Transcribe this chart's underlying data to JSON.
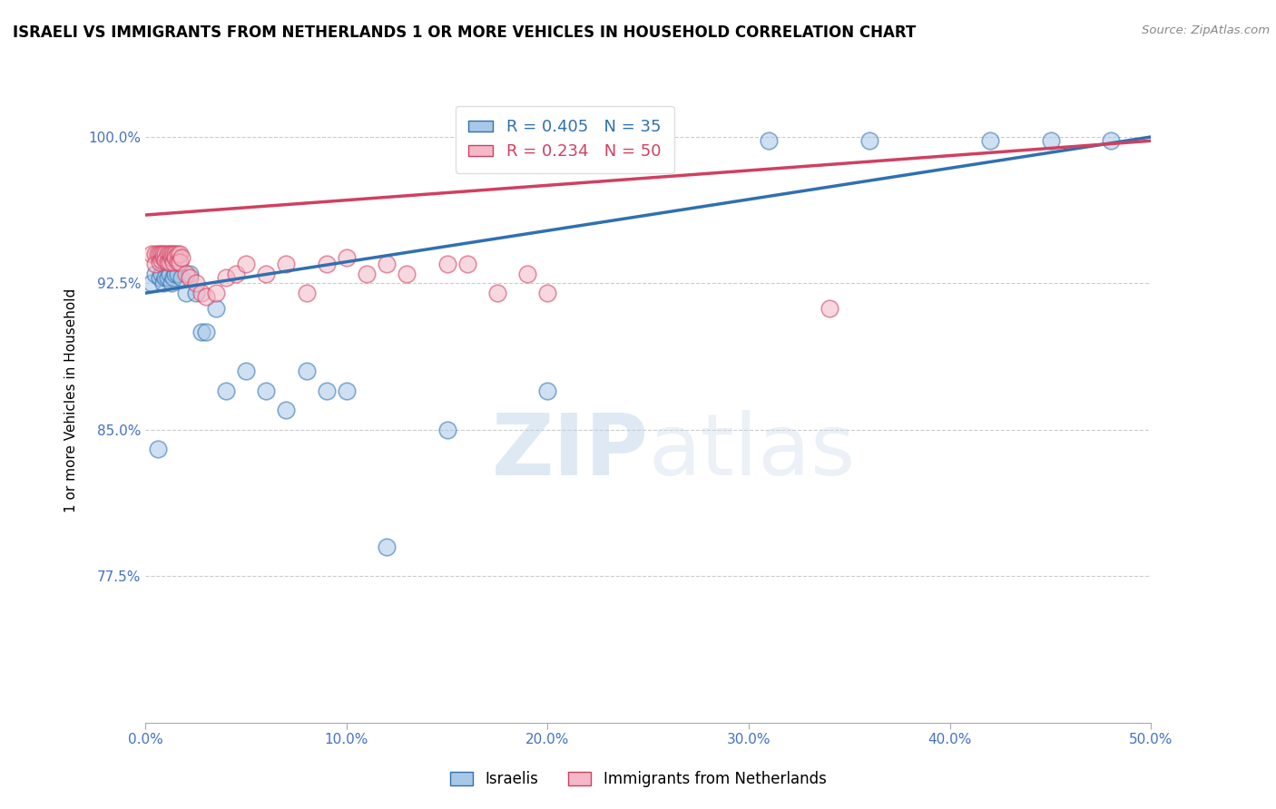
{
  "title": "ISRAELI VS IMMIGRANTS FROM NETHERLANDS 1 OR MORE VEHICLES IN HOUSEHOLD CORRELATION CHART",
  "source": "Source: ZipAtlas.com",
  "ylabel": "1 or more Vehicles in Household",
  "xlabel": "",
  "xlim": [
    0.0,
    0.5
  ],
  "ylim": [
    0.7,
    1.03
  ],
  "yticks": [
    0.775,
    0.85,
    0.925,
    1.0
  ],
  "ytick_labels": [
    "77.5%",
    "85.0%",
    "92.5%",
    "100.0%"
  ],
  "xticks": [
    0.0,
    0.1,
    0.2,
    0.3,
    0.4,
    0.5
  ],
  "xtick_labels": [
    "0.0%",
    "10.0%",
    "20.0%",
    "30.0%",
    "40.0%",
    "50.0%"
  ],
  "blue_color": "#a8c8e8",
  "pink_color": "#f4b8c8",
  "blue_line_color": "#3070b0",
  "pink_line_color": "#d04060",
  "blue_R": 0.405,
  "blue_N": 35,
  "pink_R": 0.234,
  "pink_N": 50,
  "legend_label_blue": "Israelis",
  "legend_label_pink": "Immigrants from Netherlands",
  "watermark_part1": "ZIP",
  "watermark_part2": "atlas",
  "title_fontsize": 12,
  "axis_label_color": "#4472c4",
  "grid_color": "#cccccc",
  "israelis_x": [
    0.003,
    0.005,
    0.006,
    0.007,
    0.008,
    0.009,
    0.01,
    0.011,
    0.012,
    0.013,
    0.014,
    0.015,
    0.016,
    0.018,
    0.02,
    0.022,
    0.025,
    0.028,
    0.03,
    0.035,
    0.04,
    0.05,
    0.06,
    0.07,
    0.08,
    0.09,
    0.1,
    0.12,
    0.15,
    0.2,
    0.31,
    0.36,
    0.42,
    0.45,
    0.48
  ],
  "israelis_y": [
    0.925,
    0.93,
    0.84,
    0.928,
    0.93,
    0.925,
    0.928,
    0.928,
    0.93,
    0.925,
    0.928,
    0.93,
    0.93,
    0.928,
    0.92,
    0.93,
    0.92,
    0.9,
    0.9,
    0.912,
    0.87,
    0.88,
    0.87,
    0.86,
    0.88,
    0.87,
    0.87,
    0.79,
    0.85,
    0.87,
    0.998,
    0.998,
    0.998,
    0.998,
    0.998
  ],
  "netherlands_x": [
    0.003,
    0.005,
    0.005,
    0.006,
    0.007,
    0.007,
    0.008,
    0.008,
    0.009,
    0.009,
    0.01,
    0.01,
    0.011,
    0.011,
    0.012,
    0.012,
    0.013,
    0.013,
    0.014,
    0.014,
    0.015,
    0.015,
    0.016,
    0.016,
    0.017,
    0.017,
    0.018,
    0.02,
    0.022,
    0.025,
    0.028,
    0.03,
    0.035,
    0.04,
    0.045,
    0.05,
    0.06,
    0.07,
    0.08,
    0.09,
    0.1,
    0.11,
    0.12,
    0.13,
    0.15,
    0.16,
    0.175,
    0.19,
    0.2,
    0.34
  ],
  "netherlands_y": [
    0.94,
    0.94,
    0.935,
    0.94,
    0.94,
    0.936,
    0.94,
    0.937,
    0.938,
    0.94,
    0.94,
    0.937,
    0.94,
    0.936,
    0.94,
    0.936,
    0.938,
    0.94,
    0.936,
    0.94,
    0.94,
    0.938,
    0.94,
    0.936,
    0.94,
    0.936,
    0.938,
    0.93,
    0.928,
    0.925,
    0.92,
    0.918,
    0.92,
    0.928,
    0.93,
    0.935,
    0.93,
    0.935,
    0.92,
    0.935,
    0.938,
    0.93,
    0.935,
    0.93,
    0.935,
    0.935,
    0.92,
    0.93,
    0.92,
    0.912
  ]
}
